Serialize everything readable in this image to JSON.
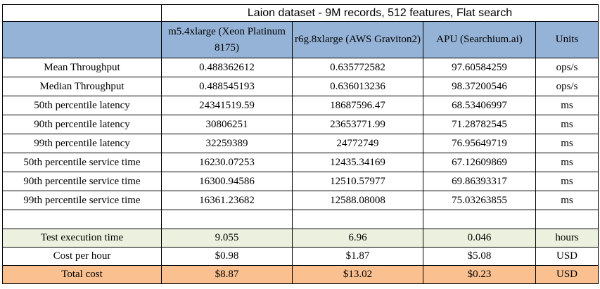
{
  "title": "Laion dataset - 9M records, 512 features, Flat search",
  "columns": [
    "m5.4xlarge (Xeon Platinum 8175)",
    "r6g.8xlarge (AWS Graviton2)",
    "APU (Searchium.ai)",
    "Units"
  ],
  "rows": [
    {
      "label": "Mean Throughput",
      "values": [
        "0.488362612",
        "0.635772582",
        "97.60584259",
        "ops/s"
      ]
    },
    {
      "label": "Median Throughput",
      "values": [
        "0.488545193",
        "0.636013236",
        "98.37200546",
        "ops/s"
      ]
    },
    {
      "label": "50th percentile latency",
      "values": [
        "24341519.59",
        "18687596.47",
        "68.53406997",
        "ms"
      ]
    },
    {
      "label": "90th percentile latency",
      "values": [
        "30806251",
        "23653771.99",
        "71.28782545",
        "ms"
      ]
    },
    {
      "label": "99th percentile latency",
      "values": [
        "32259389",
        "24772749",
        "76.95649719",
        "ms"
      ]
    },
    {
      "label": "50th percentile service time",
      "values": [
        "16230.07253",
        "12435.34169",
        "67.12609869",
        "ms"
      ]
    },
    {
      "label": "90th percentile service time",
      "values": [
        "16300.94586",
        "12510.57977",
        "69.86393317",
        "ms"
      ]
    },
    {
      "label": "99th percentile service time",
      "values": [
        "16361.23682",
        "12588.08008",
        "75.03263855",
        "ms"
      ]
    }
  ],
  "cost_rows": [
    {
      "label": "Test execution time",
      "values": [
        "9.055",
        "6.96",
        "0.046",
        "hours"
      ]
    },
    {
      "label": "Cost per hour",
      "values": [
        "$0.98",
        "$1.87",
        "$5.08",
        "USD"
      ]
    },
    {
      "label": "Total cost",
      "values": [
        "$8.87",
        "$13.02",
        "$0.23",
        "USD"
      ]
    }
  ],
  "colors": {
    "header": "#95b3d7",
    "execution_row": "#ebf1de",
    "total_row": "#fac090"
  }
}
